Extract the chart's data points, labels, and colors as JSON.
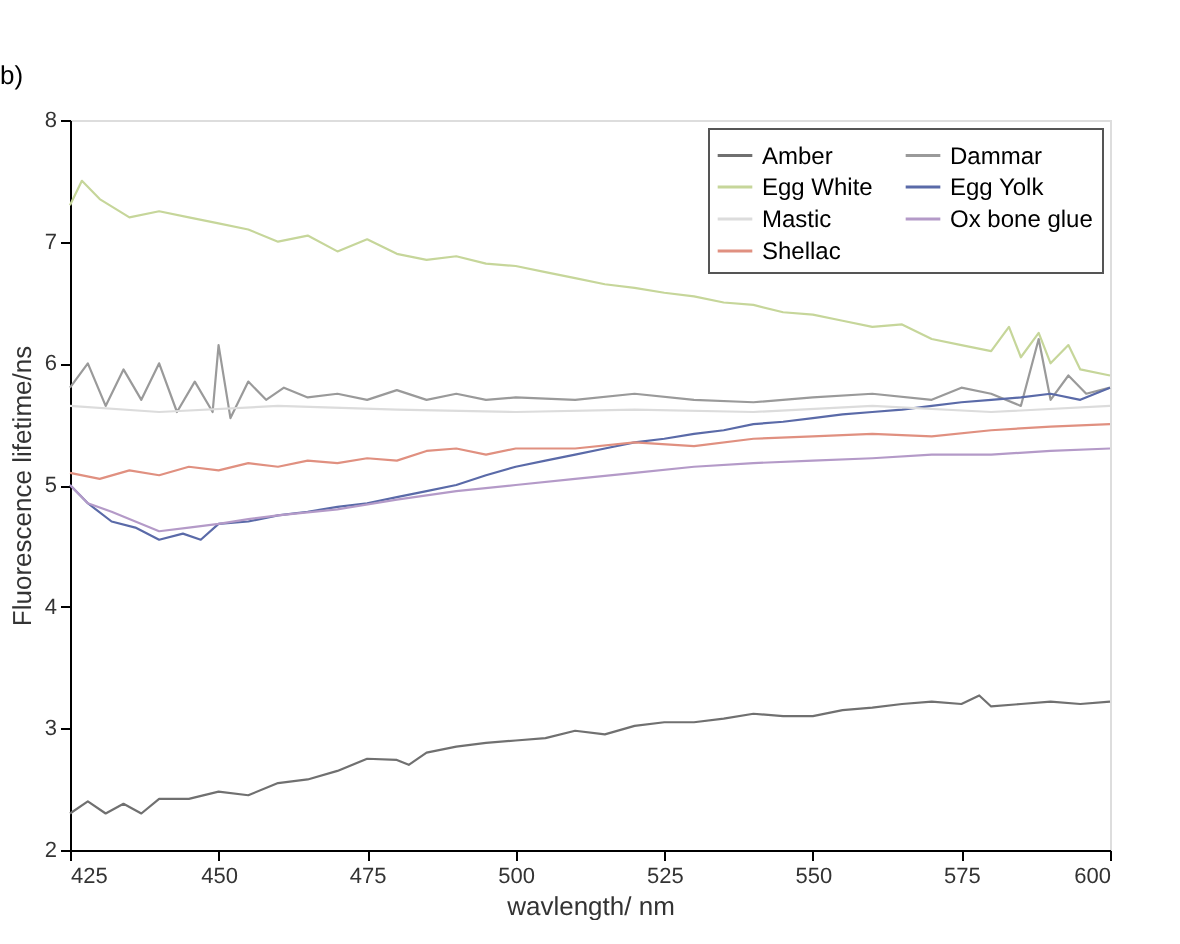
{
  "chart_data": {
    "type": "line",
    "xlabel": "wavlength/ nm",
    "ylabel": "Fluorescence lifetime/ns",
    "annotations": [
      "b)"
    ],
    "xlim": [
      425,
      600
    ],
    "xticks": [
      425,
      450,
      475,
      500,
      525,
      550,
      575,
      600
    ],
    "ylim": [
      2,
      8
    ],
    "yticks": [
      2,
      3,
      4,
      5,
      6,
      7,
      8
    ],
    "grid": false,
    "legend": "top right",
    "marker": "none",
    "line_style": "solid",
    "series": [
      {
        "name": "Amber",
        "color": "#707070",
        "x": [
          425,
          428,
          431,
          434,
          437,
          440,
          445,
          450,
          455,
          460,
          465,
          470,
          475,
          480,
          482,
          485,
          490,
          495,
          500,
          505,
          510,
          515,
          520,
          525,
          530,
          535,
          540,
          545,
          550,
          555,
          560,
          565,
          570,
          575,
          578,
          580,
          585,
          590,
          595,
          600
        ],
        "values": [
          2.3,
          2.4,
          2.3,
          2.38,
          2.3,
          2.42,
          2.42,
          2.48,
          2.45,
          2.55,
          2.58,
          2.65,
          2.75,
          2.74,
          2.7,
          2.8,
          2.85,
          2.88,
          2.9,
          2.92,
          2.98,
          2.95,
          3.02,
          3.05,
          3.05,
          3.08,
          3.12,
          3.1,
          3.1,
          3.15,
          3.17,
          3.2,
          3.22,
          3.2,
          3.27,
          3.18,
          3.2,
          3.22,
          3.2,
          3.22
        ]
      },
      {
        "name": "Dammar",
        "color": "#9a9a9a",
        "x": [
          425,
          428,
          431,
          434,
          437,
          440,
          443,
          446,
          449,
          450,
          452,
          455,
          458,
          461,
          465,
          470,
          475,
          480,
          485,
          490,
          495,
          500,
          510,
          520,
          530,
          540,
          550,
          560,
          570,
          575,
          580,
          585,
          588,
          590,
          593,
          596,
          600
        ],
        "values": [
          5.8,
          6.0,
          5.65,
          5.95,
          5.7,
          6.0,
          5.6,
          5.85,
          5.6,
          6.15,
          5.55,
          5.85,
          5.7,
          5.8,
          5.72,
          5.75,
          5.7,
          5.78,
          5.7,
          5.75,
          5.7,
          5.72,
          5.7,
          5.75,
          5.7,
          5.68,
          5.72,
          5.75,
          5.7,
          5.8,
          5.75,
          5.65,
          6.2,
          5.7,
          5.9,
          5.75,
          5.8
        ]
      },
      {
        "name": "Egg White",
        "color": "#c6d69a",
        "x": [
          425,
          427,
          430,
          435,
          440,
          445,
          450,
          455,
          460,
          465,
          470,
          475,
          480,
          485,
          490,
          495,
          500,
          505,
          510,
          515,
          520,
          525,
          530,
          535,
          540,
          545,
          550,
          555,
          560,
          565,
          570,
          575,
          580,
          583,
          585,
          588,
          590,
          593,
          595,
          600
        ],
        "values": [
          7.3,
          7.5,
          7.35,
          7.2,
          7.25,
          7.2,
          7.15,
          7.1,
          7.0,
          7.05,
          6.92,
          7.02,
          6.9,
          6.85,
          6.88,
          6.82,
          6.8,
          6.75,
          6.7,
          6.65,
          6.62,
          6.58,
          6.55,
          6.5,
          6.48,
          6.42,
          6.4,
          6.35,
          6.3,
          6.32,
          6.2,
          6.15,
          6.1,
          6.3,
          6.05,
          6.25,
          6.0,
          6.15,
          5.95,
          5.9
        ]
      },
      {
        "name": "Egg Yolk",
        "color": "#5a6aa8",
        "x": [
          425,
          428,
          432,
          436,
          440,
          444,
          447,
          450,
          455,
          460,
          465,
          470,
          475,
          480,
          485,
          490,
          495,
          500,
          505,
          510,
          515,
          520,
          525,
          530,
          535,
          540,
          545,
          550,
          555,
          560,
          565,
          570,
          575,
          580,
          585,
          590,
          595,
          600
        ],
        "values": [
          5.0,
          4.85,
          4.7,
          4.65,
          4.55,
          4.6,
          4.55,
          4.68,
          4.7,
          4.75,
          4.78,
          4.82,
          4.85,
          4.9,
          4.95,
          5.0,
          5.08,
          5.15,
          5.2,
          5.25,
          5.3,
          5.35,
          5.38,
          5.42,
          5.45,
          5.5,
          5.52,
          5.55,
          5.58,
          5.6,
          5.62,
          5.65,
          5.68,
          5.7,
          5.72,
          5.75,
          5.7,
          5.8
        ]
      },
      {
        "name": "Mastic",
        "color": "#dcdcdc",
        "x": [
          425,
          440,
          460,
          480,
          500,
          520,
          540,
          560,
          580,
          600
        ],
        "values": [
          5.65,
          5.6,
          5.65,
          5.62,
          5.6,
          5.62,
          5.6,
          5.65,
          5.6,
          5.65
        ]
      },
      {
        "name": "Ox bone glue",
        "color": "#b49ac8",
        "x": [
          425,
          428,
          432,
          436,
          440,
          445,
          450,
          455,
          460,
          470,
          480,
          490,
          500,
          510,
          520,
          530,
          540,
          550,
          560,
          570,
          580,
          590,
          600
        ],
        "values": [
          5.0,
          4.85,
          4.78,
          4.7,
          4.62,
          4.65,
          4.68,
          4.72,
          4.75,
          4.8,
          4.88,
          4.95,
          5.0,
          5.05,
          5.1,
          5.15,
          5.18,
          5.2,
          5.22,
          5.25,
          5.25,
          5.28,
          5.3
        ]
      },
      {
        "name": "Shellac",
        "color": "#e09080",
        "x": [
          425,
          430,
          435,
          440,
          445,
          450,
          455,
          460,
          465,
          470,
          475,
          480,
          485,
          490,
          495,
          500,
          510,
          520,
          530,
          540,
          550,
          560,
          570,
          580,
          590,
          600
        ],
        "values": [
          5.1,
          5.05,
          5.12,
          5.08,
          5.15,
          5.12,
          5.18,
          5.15,
          5.2,
          5.18,
          5.22,
          5.2,
          5.28,
          5.3,
          5.25,
          5.3,
          5.3,
          5.35,
          5.32,
          5.38,
          5.4,
          5.42,
          5.4,
          5.45,
          5.48,
          5.5
        ]
      }
    ]
  }
}
